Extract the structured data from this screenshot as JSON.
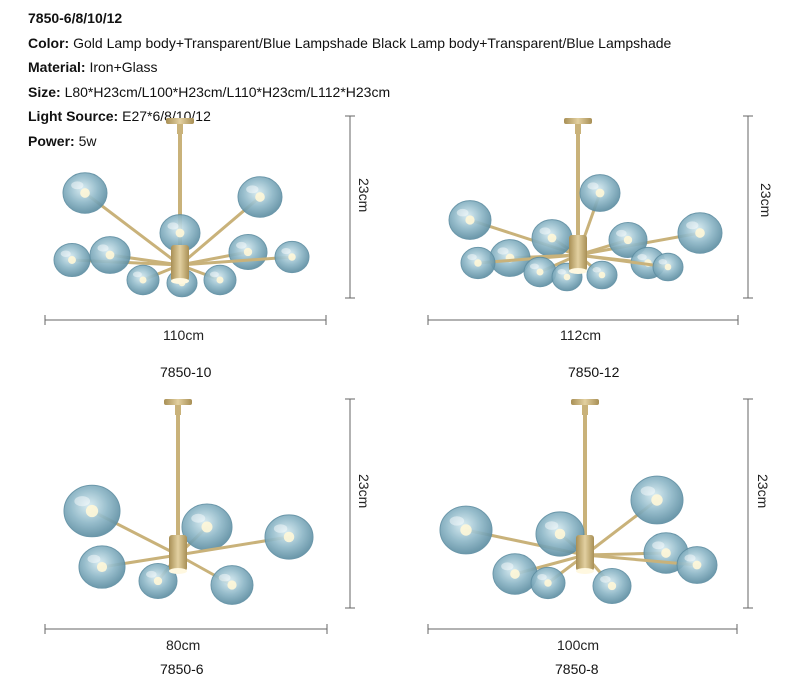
{
  "spec": {
    "model": "7850-6/8/10/12",
    "color_key": "Color:",
    "color_val": "Gold Lamp body+Transparent/Blue Lampshade  Black Lamp body+Transparent/Blue Lampshade",
    "material_key": "Material:",
    "material_val": "Iron+Glass",
    "size_key": "Size:",
    "size_val": "L80*H23cm/L100*H23cm/L110*H23cm/L112*H23cm",
    "light_key": "Light Source:",
    "light_val": "E27*6/8/10/12",
    "power_key": "Power:",
    "power_val": "5w"
  },
  "products": [
    {
      "model": "7850-10",
      "width": "110cm",
      "height": "23cm"
    },
    {
      "model": "7850-12",
      "width": "112cm",
      "height": "23cm"
    },
    {
      "model": "7850-6",
      "width": "80cm",
      "height": "23cm"
    },
    {
      "model": "7850-8",
      "width": "100cm",
      "height": "23cm"
    }
  ],
  "colors": {
    "gold": "#c9b27a",
    "glass": "#8fb8c8",
    "glass_dark": "#5f8fa3",
    "line": "#666666"
  }
}
